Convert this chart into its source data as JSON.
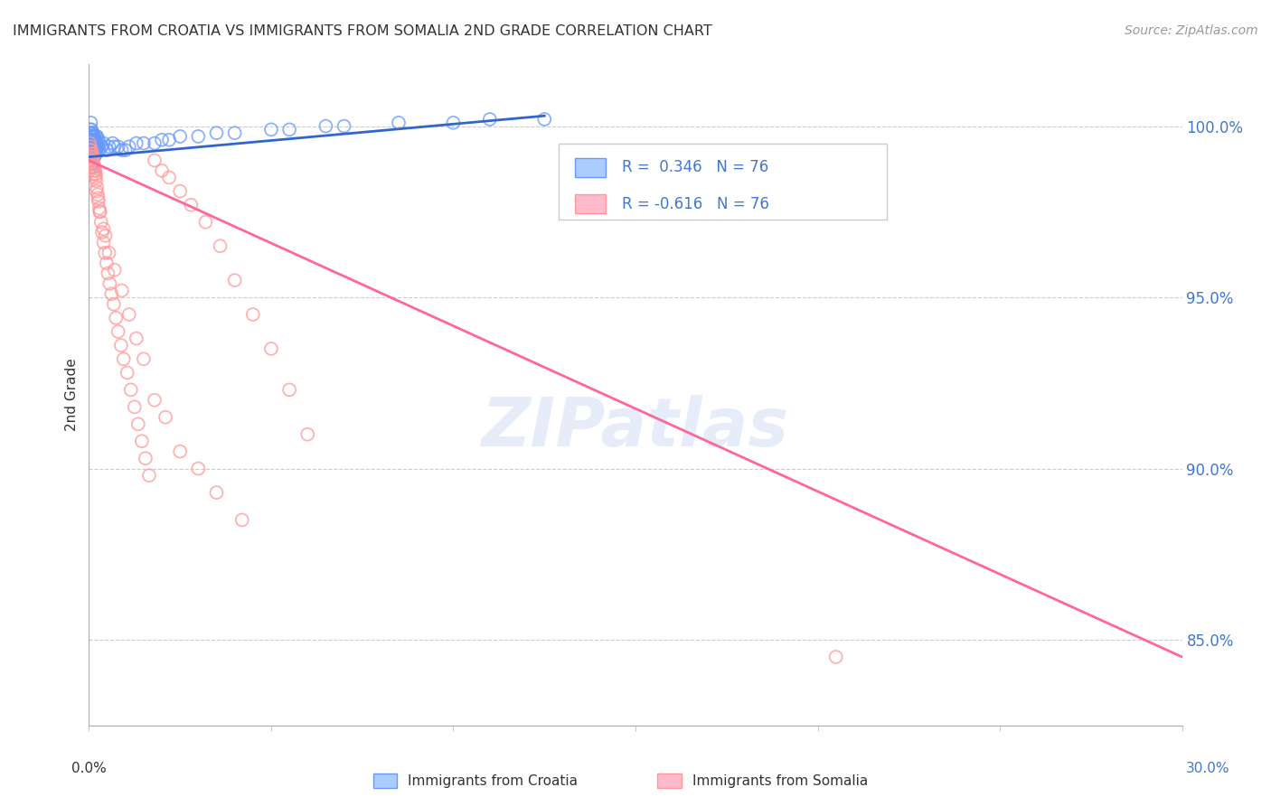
{
  "title": "IMMIGRANTS FROM CROATIA VS IMMIGRANTS FROM SOMALIA 2ND GRADE CORRELATION CHART",
  "source": "Source: ZipAtlas.com",
  "ylabel": "2nd Grade",
  "xlim": [
    0.0,
    30.0
  ],
  "ylim": [
    82.5,
    101.8
  ],
  "yticks": [
    85.0,
    90.0,
    95.0,
    100.0
  ],
  "ytick_labels": [
    "85.0%",
    "90.0%",
    "95.0%",
    "100.0%"
  ],
  "croatia_color": "#6699FF",
  "somalia_color": "#FF9999",
  "croatia_trend_color": "#3366CC",
  "somalia_trend_color": "#FF6699",
  "legend_R_croatia": "R =  0.346",
  "legend_N_croatia": "N = 76",
  "legend_R_somalia": "R = -0.616",
  "legend_N_somalia": "N = 76",
  "watermark": "ZIPatlas",
  "croatia_x": [
    0.02,
    0.03,
    0.04,
    0.05,
    0.05,
    0.06,
    0.06,
    0.07,
    0.07,
    0.08,
    0.08,
    0.09,
    0.09,
    0.1,
    0.1,
    0.11,
    0.11,
    0.12,
    0.12,
    0.13,
    0.13,
    0.14,
    0.14,
    0.15,
    0.15,
    0.16,
    0.16,
    0.17,
    0.17,
    0.18,
    0.18,
    0.19,
    0.2,
    0.2,
    0.21,
    0.22,
    0.22,
    0.23,
    0.25,
    0.26,
    0.28,
    0.3,
    0.35,
    0.4,
    0.5,
    0.55,
    0.65,
    0.7,
    0.8,
    0.9,
    1.0,
    1.1,
    1.3,
    1.5,
    1.8,
    2.0,
    2.2,
    2.5,
    3.0,
    3.5,
    4.0,
    5.0,
    5.5,
    6.5,
    7.0,
    8.5,
    10.0,
    11.0,
    12.5,
    0.04,
    0.06,
    0.08,
    0.1,
    0.12,
    0.15,
    0.2
  ],
  "croatia_y": [
    99.8,
    99.9,
    99.7,
    99.6,
    100.1,
    99.8,
    99.5,
    99.7,
    99.9,
    99.6,
    99.8,
    99.5,
    99.7,
    99.6,
    99.8,
    99.5,
    99.7,
    99.4,
    99.6,
    99.5,
    99.7,
    99.4,
    99.6,
    99.5,
    99.7,
    99.4,
    99.6,
    99.3,
    99.5,
    99.4,
    99.6,
    99.3,
    99.5,
    99.7,
    99.4,
    99.5,
    99.7,
    99.4,
    99.6,
    99.4,
    99.3,
    99.5,
    99.4,
    99.5,
    99.3,
    99.4,
    99.5,
    99.4,
    99.4,
    99.3,
    99.3,
    99.4,
    99.5,
    99.5,
    99.5,
    99.6,
    99.6,
    99.7,
    99.7,
    99.8,
    99.8,
    99.9,
    99.9,
    100.0,
    100.0,
    100.1,
    100.1,
    100.2,
    100.2,
    98.8,
    98.9,
    99.0,
    98.8,
    98.9,
    99.1,
    99.2
  ],
  "somalia_x": [
    0.02,
    0.03,
    0.04,
    0.05,
    0.06,
    0.07,
    0.08,
    0.09,
    0.1,
    0.11,
    0.12,
    0.13,
    0.14,
    0.15,
    0.16,
    0.17,
    0.18,
    0.19,
    0.2,
    0.22,
    0.24,
    0.26,
    0.28,
    0.3,
    0.33,
    0.36,
    0.4,
    0.44,
    0.48,
    0.52,
    0.57,
    0.62,
    0.68,
    0.74,
    0.8,
    0.88,
    0.95,
    1.05,
    1.15,
    1.25,
    1.35,
    1.45,
    1.55,
    1.65,
    1.8,
    2.0,
    2.2,
    2.5,
    2.8,
    3.2,
    3.6,
    4.0,
    4.5,
    5.0,
    5.5,
    6.0,
    0.1,
    0.2,
    0.3,
    0.4,
    0.55,
    0.7,
    0.9,
    1.1,
    1.3,
    1.5,
    1.8,
    2.1,
    2.5,
    3.0,
    3.5,
    4.2,
    0.08,
    0.25,
    0.45,
    20.5
  ],
  "somalia_y": [
    99.5,
    99.3,
    99.4,
    99.2,
    99.3,
    99.1,
    99.0,
    99.2,
    98.9,
    99.0,
    98.8,
    98.9,
    98.7,
    98.8,
    98.6,
    98.7,
    98.5,
    98.6,
    98.4,
    98.2,
    98.0,
    97.8,
    97.6,
    97.5,
    97.2,
    96.9,
    96.6,
    96.3,
    96.0,
    95.7,
    95.4,
    95.1,
    94.8,
    94.4,
    94.0,
    93.6,
    93.2,
    92.8,
    92.3,
    91.8,
    91.3,
    90.8,
    90.3,
    89.8,
    99.0,
    98.7,
    98.5,
    98.1,
    97.7,
    97.2,
    96.5,
    95.5,
    94.5,
    93.5,
    92.3,
    91.0,
    98.6,
    98.1,
    97.5,
    97.0,
    96.3,
    95.8,
    95.2,
    94.5,
    93.8,
    93.2,
    92.0,
    91.5,
    90.5,
    90.0,
    89.3,
    88.5,
    99.1,
    97.9,
    96.8,
    84.5
  ],
  "somalia_trend_x0": 0.0,
  "somalia_trend_y0": 99.0,
  "somalia_trend_x1": 30.0,
  "somalia_trend_y1": 84.5,
  "croatia_trend_x0": 0.0,
  "croatia_trend_y0": 99.1,
  "croatia_trend_x1": 12.5,
  "croatia_trend_y1": 100.3
}
